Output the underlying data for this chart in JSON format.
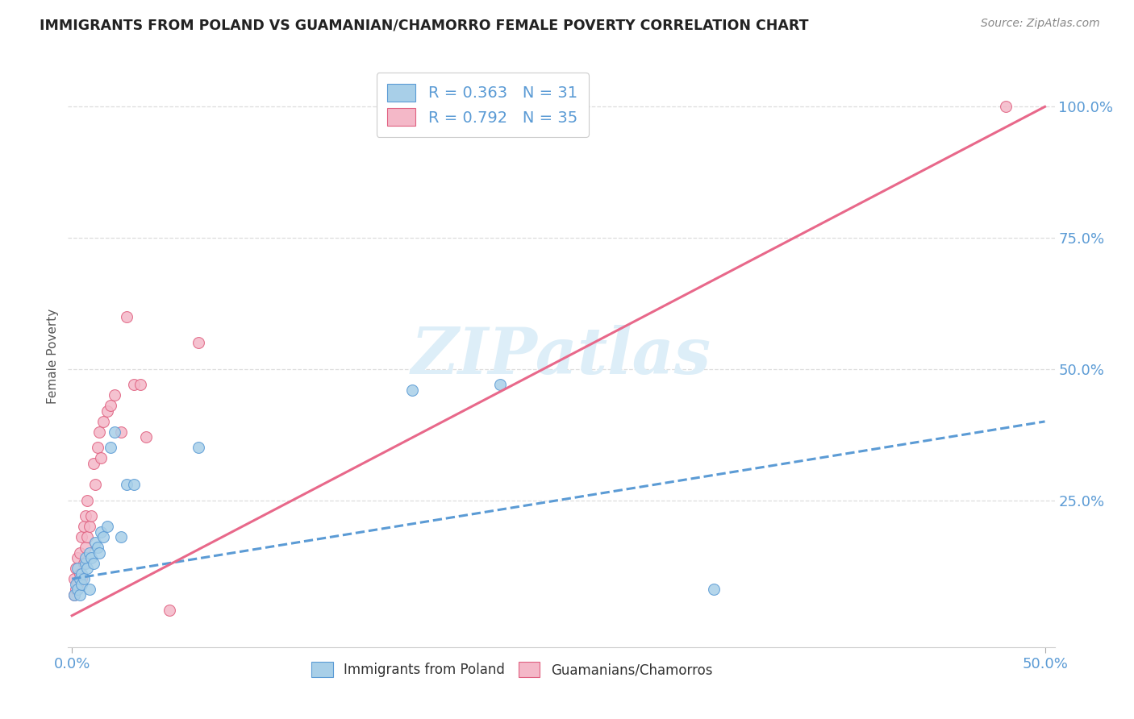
{
  "title": "IMMIGRANTS FROM POLAND VS GUAMANIAN/CHAMORRO FEMALE POVERTY CORRELATION CHART",
  "source": "Source: ZipAtlas.com",
  "ylabel": "Female Poverty",
  "ytick_labels": [
    "100.0%",
    "75.0%",
    "50.0%",
    "25.0%"
  ],
  "ytick_values": [
    1.0,
    0.75,
    0.5,
    0.25
  ],
  "xtick_labels": [
    "0.0%",
    "50.0%"
  ],
  "xtick_values": [
    0.0,
    0.5
  ],
  "xlim": [
    -0.002,
    0.505
  ],
  "ylim": [
    -0.03,
    1.08
  ],
  "blue_color": "#a8cfe8",
  "blue_edge": "#5b9bd5",
  "pink_color": "#f4b8c8",
  "pink_edge": "#e06080",
  "trendline_blue_color": "#5b9bd5",
  "trendline_pink_color": "#e8688a",
  "watermark_color": "#ddeef8",
  "poland_x": [
    0.001,
    0.002,
    0.003,
    0.003,
    0.004,
    0.004,
    0.005,
    0.005,
    0.006,
    0.007,
    0.007,
    0.008,
    0.009,
    0.009,
    0.01,
    0.011,
    0.012,
    0.013,
    0.014,
    0.015,
    0.016,
    0.018,
    0.02,
    0.022,
    0.025,
    0.028,
    0.032,
    0.065,
    0.175,
    0.22,
    0.33
  ],
  "poland_y": [
    0.07,
    0.09,
    0.08,
    0.12,
    0.07,
    0.1,
    0.09,
    0.11,
    0.1,
    0.13,
    0.14,
    0.12,
    0.15,
    0.08,
    0.14,
    0.13,
    0.17,
    0.16,
    0.15,
    0.19,
    0.18,
    0.2,
    0.35,
    0.38,
    0.18,
    0.28,
    0.28,
    0.35,
    0.46,
    0.47,
    0.08
  ],
  "guam_x": [
    0.001,
    0.001,
    0.002,
    0.002,
    0.003,
    0.003,
    0.004,
    0.004,
    0.005,
    0.005,
    0.006,
    0.006,
    0.007,
    0.007,
    0.008,
    0.008,
    0.009,
    0.01,
    0.011,
    0.012,
    0.013,
    0.014,
    0.015,
    0.016,
    0.018,
    0.02,
    0.022,
    0.025,
    0.028,
    0.032,
    0.035,
    0.038,
    0.05,
    0.065,
    0.48
  ],
  "guam_y": [
    0.07,
    0.1,
    0.08,
    0.12,
    0.09,
    0.14,
    0.11,
    0.15,
    0.1,
    0.18,
    0.13,
    0.2,
    0.16,
    0.22,
    0.18,
    0.25,
    0.2,
    0.22,
    0.32,
    0.28,
    0.35,
    0.38,
    0.33,
    0.4,
    0.42,
    0.43,
    0.45,
    0.38,
    0.6,
    0.47,
    0.47,
    0.37,
    0.04,
    0.55,
    1.0
  ],
  "trendline_blue_x0": 0.0,
  "trendline_blue_y0": 0.1,
  "trendline_blue_x1": 0.5,
  "trendline_blue_y1": 0.4,
  "trendline_pink_x0": 0.0,
  "trendline_pink_y0": 0.03,
  "trendline_pink_x1": 0.5,
  "trendline_pink_y1": 1.0
}
